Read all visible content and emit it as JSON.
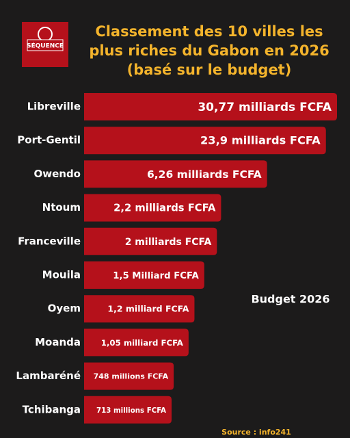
{
  "chart_data": {
    "type": "bar",
    "orientation": "horizontal",
    "logo": "SÉQUENCE",
    "title": [
      "Classement des 10 villes les",
      "plus riches du Gabon en 2026",
      "(basé sur le budget)"
    ],
    "categories": [
      "Libreville",
      "Port-Gentil",
      "Owendo",
      "Ntoum",
      "Franceville",
      "Mouila",
      "Oyem",
      "Moanda",
      "Lambaréné",
      "Tchibanga"
    ],
    "series": [
      {
        "name": "Budget 2026",
        "color": "#b5111b",
        "values": [
          30.77,
          23.9,
          6.26,
          2.2,
          2,
          1.5,
          1.2,
          1.05,
          0.748,
          0.713
        ],
        "value_labels": [
          "30,77 milliards FCFA",
          "23,9 milliards FCFA",
          "6,26 milliards FCFA",
          "2,2 milliards FCFA",
          "2 milliards FCFA",
          "1,5 Milliard FCFA",
          "1,2 milliard FCFA",
          "1,05 milliard FCFA",
          "748 millions FCFA",
          "713 millions FCFA"
        ]
      }
    ],
    "source": "Source : info241"
  }
}
